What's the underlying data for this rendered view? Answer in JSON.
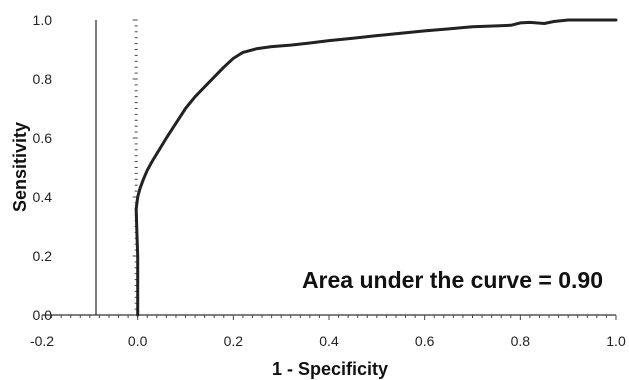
{
  "chart_data": {
    "type": "line",
    "title": "",
    "xlabel": "1 - Specificity",
    "ylabel": "Sensitivity",
    "xlim": [
      -0.2,
      1.0
    ],
    "ylim": [
      0.0,
      1.0
    ],
    "x_ticks": [
      "-0.2",
      "0.0",
      "0.2",
      "0.4",
      "0.6",
      "0.8",
      "1.0"
    ],
    "y_ticks": [
      "0.0",
      "0.2",
      "0.4",
      "0.6",
      "0.8",
      "1.0"
    ],
    "grid": false,
    "legend": "none",
    "annotation": "Area under the curve = 0.90",
    "line_color": "#222222",
    "series": [
      {
        "x": [
          0.0,
          0.0,
          0.0,
          -0.002,
          -0.003,
          0.0,
          0.005,
          0.012,
          0.02,
          0.03,
          0.045,
          0.06,
          0.08,
          0.1,
          0.12,
          0.15,
          0.18,
          0.2,
          0.22,
          0.25,
          0.28,
          0.32,
          0.36,
          0.4,
          0.45,
          0.5,
          0.55,
          0.6,
          0.65,
          0.7,
          0.75,
          0.78,
          0.8,
          0.82,
          0.85,
          0.87,
          0.9,
          0.95,
          1.0
        ],
        "y": [
          0.0,
          0.1,
          0.2,
          0.3,
          0.36,
          0.4,
          0.43,
          0.46,
          0.49,
          0.52,
          0.56,
          0.6,
          0.65,
          0.7,
          0.74,
          0.79,
          0.84,
          0.87,
          0.89,
          0.903,
          0.91,
          0.915,
          0.922,
          0.93,
          0.938,
          0.947,
          0.955,
          0.963,
          0.97,
          0.977,
          0.98,
          0.982,
          0.99,
          0.992,
          0.988,
          0.995,
          1.0,
          1.0,
          1.0
        ]
      }
    ]
  }
}
